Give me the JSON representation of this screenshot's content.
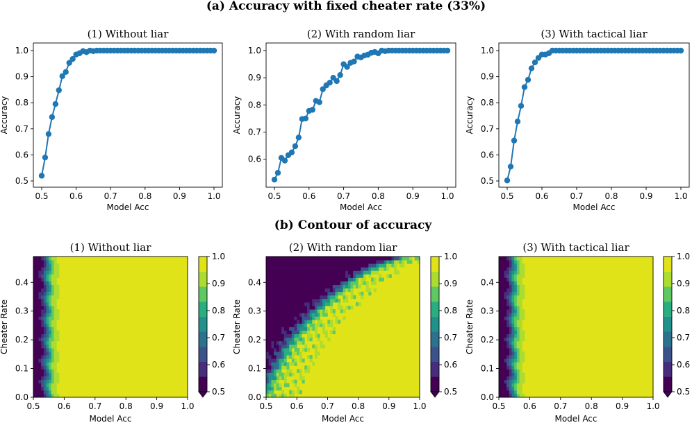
{
  "figure": {
    "section_a_title": "(a) Accuracy with fixed cheater rate (33%)",
    "section_b_title": "(b) Contour of accuracy"
  },
  "chart_data": [
    {
      "type": "line",
      "title": "(1) Without liar",
      "xlabel": "Model Acc",
      "ylabel": "Accuracy",
      "xlim": [
        0.5,
        1.0
      ],
      "ylim": [
        0.5,
        1.0
      ],
      "xticks": [
        "0.5",
        "0.6",
        "0.7",
        "0.8",
        "0.9",
        "1.0"
      ],
      "yticks": [
        "0.5",
        "0.6",
        "0.7",
        "0.8",
        "0.9",
        "1.0"
      ],
      "color": "#1f77b4",
      "x": [
        0.5,
        0.51,
        0.52,
        0.53,
        0.54,
        0.55,
        0.56,
        0.57,
        0.58,
        0.59,
        0.6,
        0.61,
        0.62,
        0.63,
        0.64,
        0.65,
        0.66,
        0.67,
        0.68,
        0.69,
        0.7,
        0.71,
        0.72,
        0.73,
        0.74,
        0.75,
        0.76,
        0.77,
        0.78,
        0.79,
        0.8,
        0.81,
        0.82,
        0.83,
        0.84,
        0.85,
        0.86,
        0.87,
        0.88,
        0.89,
        0.9,
        0.91,
        0.92,
        0.93,
        0.94,
        0.95,
        0.96,
        0.97,
        0.98,
        0.99,
        1.0
      ],
      "y": [
        0.52,
        0.59,
        0.68,
        0.745,
        0.795,
        0.848,
        0.902,
        0.918,
        0.953,
        0.968,
        0.985,
        0.99,
        0.998,
        0.994,
        1.0,
        0.998,
        1.0,
        1.0,
        1.0,
        1.0,
        1.0,
        1.0,
        1.0,
        1.0,
        1.0,
        1.0,
        1.0,
        1.0,
        1.0,
        1.0,
        1.0,
        1.0,
        1.0,
        1.0,
        1.0,
        1.0,
        1.0,
        1.0,
        1.0,
        1.0,
        1.0,
        1.0,
        1.0,
        1.0,
        1.0,
        1.0,
        1.0,
        1.0,
        1.0,
        1.0,
        1.0
      ]
    },
    {
      "type": "line",
      "title": "(2) With random liar",
      "xlabel": "Model Acc",
      "ylabel": "Accuracy",
      "xlim": [
        0.5,
        1.0
      ],
      "ylim": [
        0.52,
        1.0
      ],
      "xticks": [
        "0.5",
        "0.6",
        "0.7",
        "0.8",
        "0.9",
        "1.0"
      ],
      "yticks": [
        "0.6",
        "0.7",
        "0.8",
        "0.9",
        "1.0"
      ],
      "color": "#1f77b4",
      "x": [
        0.5,
        0.51,
        0.52,
        0.53,
        0.54,
        0.55,
        0.56,
        0.57,
        0.58,
        0.59,
        0.6,
        0.61,
        0.62,
        0.63,
        0.64,
        0.65,
        0.66,
        0.67,
        0.68,
        0.69,
        0.7,
        0.71,
        0.72,
        0.73,
        0.74,
        0.75,
        0.76,
        0.77,
        0.78,
        0.79,
        0.8,
        0.81,
        0.82,
        0.83,
        0.84,
        0.85,
        0.86,
        0.87,
        0.88,
        0.89,
        0.9,
        0.91,
        0.92,
        0.93,
        0.94,
        0.95,
        0.96,
        0.97,
        0.98,
        0.99,
        1.0
      ],
      "y": [
        0.525,
        0.55,
        0.605,
        0.595,
        0.615,
        0.625,
        0.648,
        0.68,
        0.748,
        0.75,
        0.778,
        0.782,
        0.815,
        0.81,
        0.858,
        0.872,
        0.882,
        0.9,
        0.888,
        0.91,
        0.95,
        0.94,
        0.955,
        0.96,
        0.978,
        0.975,
        0.982,
        0.985,
        0.992,
        0.995,
        0.99,
        1.0,
        0.998,
        1.0,
        1.0,
        1.0,
        1.0,
        1.0,
        1.0,
        1.0,
        1.0,
        1.0,
        1.0,
        1.0,
        1.0,
        1.0,
        1.0,
        1.0,
        1.0,
        1.0,
        1.0
      ]
    },
    {
      "type": "line",
      "title": "(3) With tactical liar",
      "xlabel": "Model Acc",
      "ylabel": "Accuracy",
      "xlim": [
        0.5,
        1.0
      ],
      "ylim": [
        0.5,
        1.0
      ],
      "xticks": [
        "0.5",
        "0.6",
        "0.7",
        "0.8",
        "0.9",
        "1.0"
      ],
      "yticks": [
        "0.5",
        "0.6",
        "0.7",
        "0.8",
        "0.9",
        "1.0"
      ],
      "color": "#1f77b4",
      "x": [
        0.5,
        0.51,
        0.52,
        0.53,
        0.54,
        0.55,
        0.56,
        0.57,
        0.58,
        0.59,
        0.6,
        0.61,
        0.62,
        0.63,
        0.64,
        0.65,
        0.66,
        0.67,
        0.68,
        0.69,
        0.7,
        0.71,
        0.72,
        0.73,
        0.74,
        0.75,
        0.76,
        0.77,
        0.78,
        0.79,
        0.8,
        0.81,
        0.82,
        0.83,
        0.84,
        0.85,
        0.86,
        0.87,
        0.88,
        0.89,
        0.9,
        0.91,
        0.92,
        0.93,
        0.94,
        0.95,
        0.96,
        0.97,
        0.98,
        0.99,
        1.0
      ],
      "y": [
        0.502,
        0.555,
        0.655,
        0.728,
        0.788,
        0.86,
        0.888,
        0.932,
        0.955,
        0.972,
        0.985,
        0.985,
        0.99,
        1.0,
        1.0,
        1.0,
        1.0,
        1.0,
        1.0,
        1.0,
        1.0,
        1.0,
        1.0,
        1.0,
        1.0,
        1.0,
        1.0,
        1.0,
        1.0,
        1.0,
        1.0,
        1.0,
        1.0,
        1.0,
        1.0,
        1.0,
        1.0,
        1.0,
        1.0,
        1.0,
        1.0,
        1.0,
        1.0,
        1.0,
        1.0,
        1.0,
        1.0,
        1.0,
        1.0,
        1.0,
        1.0
      ]
    },
    {
      "type": "heatmap",
      "title": "(1) Without liar",
      "xlabel": "Model Acc",
      "ylabel": "Cheater Rate",
      "xlim": [
        0.5,
        1.0
      ],
      "ylim": [
        0.0,
        0.49
      ],
      "xticks": [
        "0.5",
        "0.6",
        "0.7",
        "0.8",
        "0.9",
        "1.0"
      ],
      "yticks": [
        "0.0",
        "0.1",
        "0.2",
        "0.3",
        "0.4"
      ],
      "colorbar_ticks": [
        "0.5",
        "0.6",
        "0.7",
        "0.8",
        "0.9",
        "1.0"
      ],
      "boundary_x": [
        0.535,
        0.55,
        0.56,
        0.57,
        0.585
      ],
      "description_levels": "accuracy reaches 1.0 once Model Acc exceeds ~0.58 for all cheater rates"
    },
    {
      "type": "heatmap",
      "title": "(2) With random liar",
      "xlabel": "Model Acc",
      "ylabel": "Cheater Rate",
      "xlim": [
        0.5,
        1.0
      ],
      "ylim": [
        0.0,
        0.49
      ],
      "xticks": [
        "0.5",
        "0.6",
        "0.7",
        "0.8",
        "0.9",
        "1.0"
      ],
      "yticks": [
        "0.0",
        "0.1",
        "0.2",
        "0.3",
        "0.4"
      ],
      "colorbar_ticks": [
        "0.5",
        "0.6",
        "0.7",
        "0.8",
        "0.9",
        "1.0"
      ],
      "boundary_y_at_x": {
        "x": [
          0.52,
          0.55,
          0.6,
          0.65,
          0.7,
          0.75,
          0.8,
          0.85,
          0.9,
          0.95,
          1.0
        ],
        "y": [
          0.0,
          0.08,
          0.18,
          0.25,
          0.31,
          0.36,
          0.4,
          0.44,
          0.46,
          0.48,
          0.49
        ]
      },
      "description_levels": "required Model Acc for full accuracy grows with cheater rate"
    },
    {
      "type": "heatmap",
      "title": "(3) With tactical liar",
      "xlabel": "Model Acc",
      "ylabel": "Cheater Rate",
      "xlim": [
        0.5,
        1.0
      ],
      "ylim": [
        0.0,
        0.49
      ],
      "xticks": [
        "0.5",
        "0.6",
        "0.7",
        "0.8",
        "0.9",
        "1.0"
      ],
      "yticks": [
        "0.0",
        "0.1",
        "0.2",
        "0.3",
        "0.4"
      ],
      "colorbar_ticks": [
        "0.5",
        "0.6",
        "0.7",
        "0.8",
        "0.9",
        "1.0"
      ],
      "boundary_x": [
        0.535,
        0.55,
        0.56,
        0.57,
        0.585
      ],
      "description_levels": "accuracy reaches 1.0 once Model Acc exceeds ~0.58 for all cheater rates"
    }
  ],
  "colormap": [
    "#440154",
    "#472d7b",
    "#3b528b",
    "#2c728e",
    "#21918c",
    "#28ae80",
    "#5ec962",
    "#addc30",
    "#dfe318"
  ]
}
